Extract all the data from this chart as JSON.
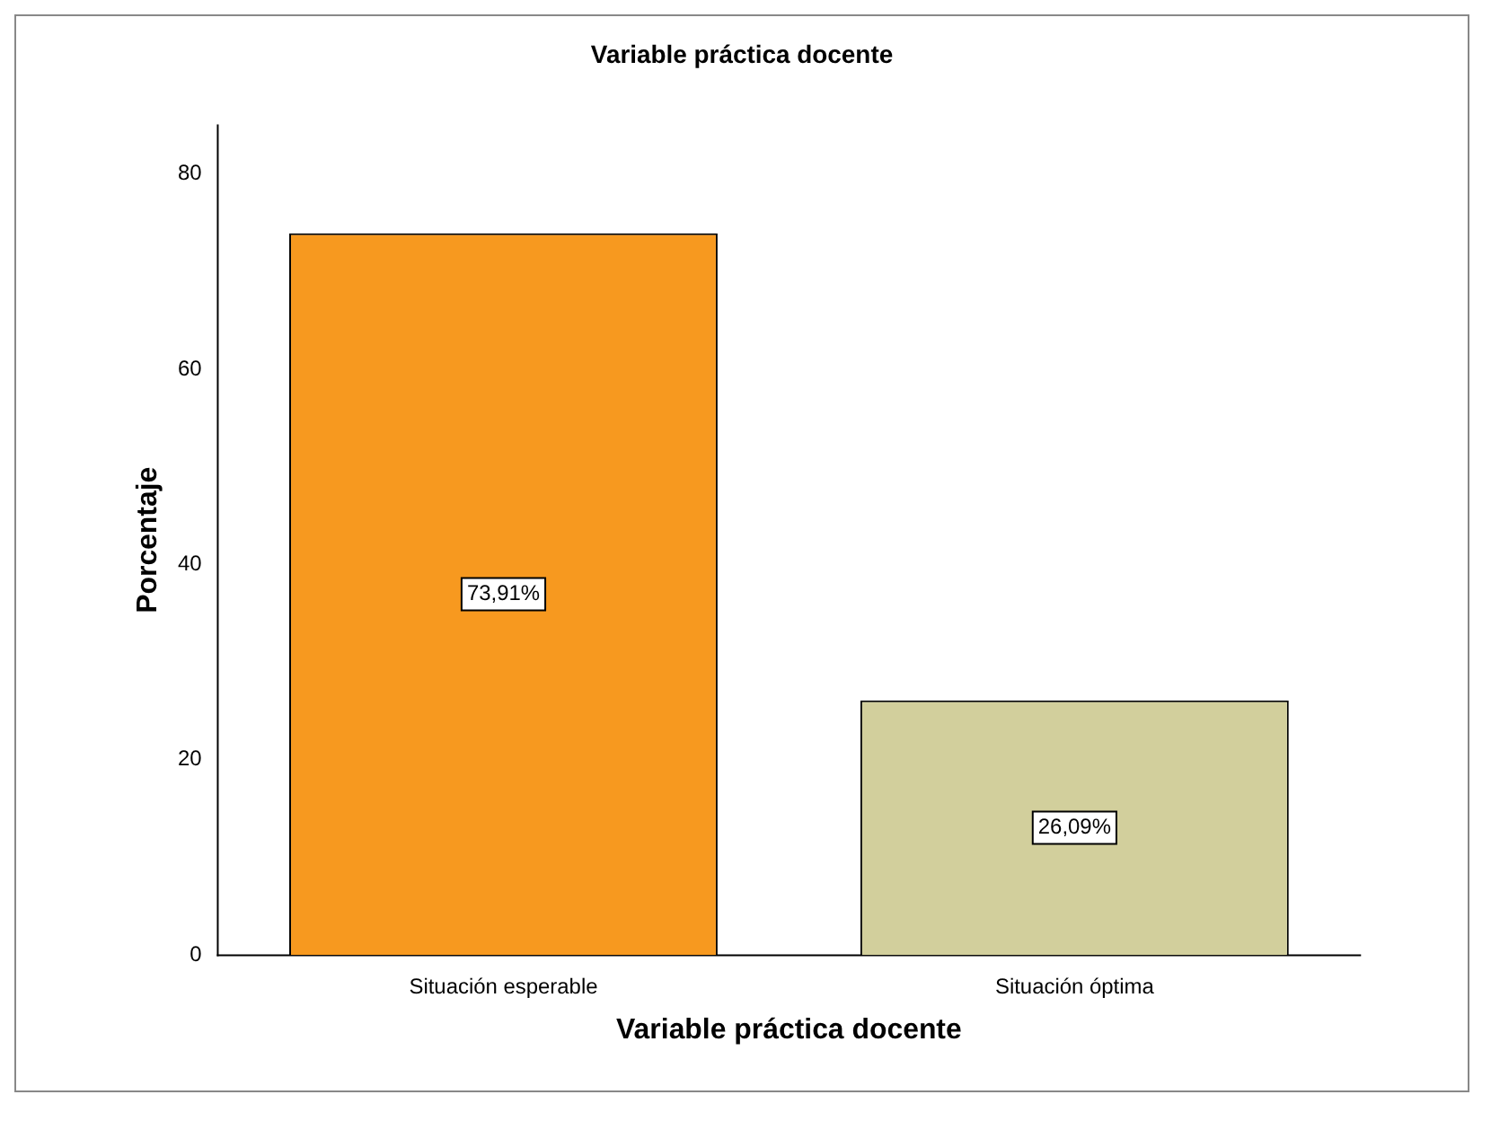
{
  "chart_data": {
    "type": "bar",
    "title": "Variable práctica docente",
    "xlabel": "Variable práctica docente",
    "ylabel": "Porcentaje",
    "categories": [
      "Situación esperable",
      "Situación óptima"
    ],
    "values": [
      73.91,
      26.09
    ],
    "value_labels": [
      "73,91%",
      "26,09%"
    ],
    "colors": [
      "#f7991f",
      "#d2cf9c"
    ],
    "ylim": [
      0,
      85
    ],
    "yticks": [
      0,
      20,
      40,
      60,
      80
    ],
    "grid": false,
    "legend": false
  }
}
